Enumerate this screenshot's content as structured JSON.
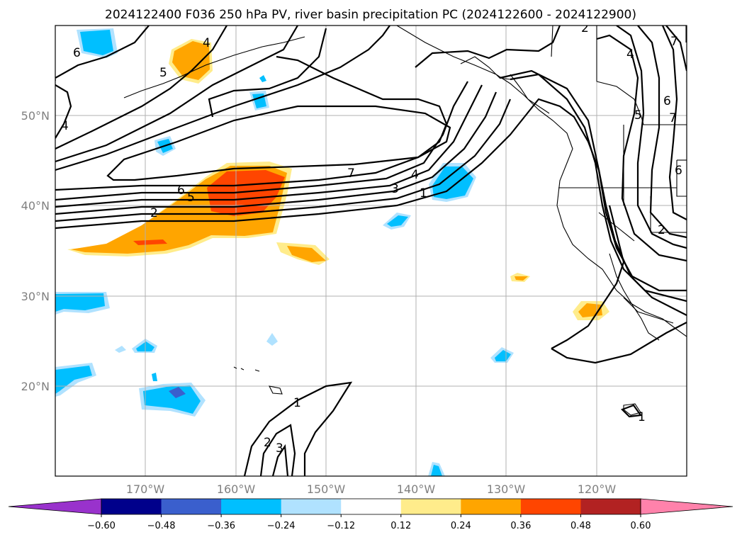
{
  "title": "2024122400 F036 250 hPa PV, river basin precipitation PC (2024122600 - 2024122900)",
  "lat_labels": [
    "50°N",
    "40°N",
    "30°N",
    "20°N"
  ],
  "lon_labels": [
    "170°W",
    "160°W",
    "150°W",
    "140°W",
    "130°W",
    "120°W"
  ],
  "colorbar": {
    "ticks": [
      "−0.60",
      "−0.48",
      "−0.36",
      "−0.24",
      "−0.12",
      "0.12",
      "0.24",
      "0.36",
      "0.48",
      "0.60"
    ],
    "colors": [
      "#9932cc",
      "#00008b",
      "#3a5fcd",
      "#00bfff",
      "#b0e2ff",
      "#ffffff",
      "#ffec8b",
      "#ffa500",
      "#ff4500",
      "#b22222",
      "#ff82ab"
    ]
  },
  "pv_labels": [
    "6",
    "4",
    "5",
    "4",
    "2",
    "7",
    "6",
    "5",
    "2",
    "7",
    "4",
    "3",
    "1",
    "6",
    "1",
    "2",
    "3",
    "1",
    "7",
    "6",
    "2",
    "4",
    "5"
  ],
  "colors": {
    "negative_fill": "#00bfff",
    "positive_fill": "#ffa500",
    "strong_positive": "#ff4500"
  }
}
